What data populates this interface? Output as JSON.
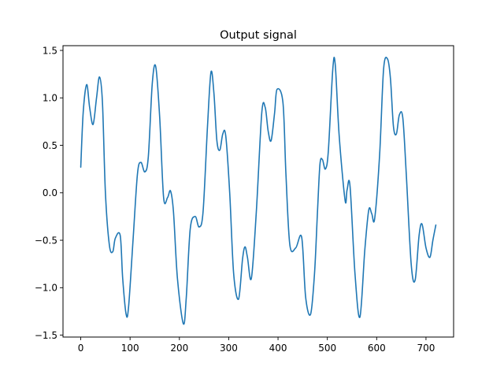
{
  "chart_data": {
    "type": "line",
    "title": "Output signal",
    "xlabel": "",
    "ylabel": "",
    "xlim": [
      -36,
      756
    ],
    "ylim": [
      -1.52,
      1.55
    ],
    "xticks": [
      0,
      100,
      200,
      300,
      400,
      500,
      600,
      700
    ],
    "xtick_labels": [
      "0",
      "100",
      "200",
      "300",
      "400",
      "500",
      "600",
      "700"
    ],
    "yticks": [
      -1.5,
      -1.0,
      -0.5,
      0.0,
      0.5,
      1.0,
      1.5
    ],
    "ytick_labels": [
      "−1.5",
      "−1.0",
      "−0.5",
      "0.0",
      "0.5",
      "1.0",
      "1.5"
    ],
    "grid": false,
    "series": [
      {
        "color": "#1f77b4",
        "x": [
          0,
          5,
          12,
          18,
          25,
          32,
          38,
          44,
          50,
          58,
          65,
          70,
          80,
          85,
          92,
          97,
          106,
          115,
          122,
          130,
          137,
          145,
          152,
          160,
          168,
          176,
          182,
          188,
          196,
          208,
          214,
          222,
          232,
          240,
          248,
          257,
          264,
          270,
          276,
          282,
          288,
          294,
          302,
          310,
          320,
          328,
          333,
          338,
          346,
          356,
          367,
          374,
          380,
          386,
          393,
          398,
          410,
          416,
          424,
          436,
          448,
          456,
          466,
          474,
          480,
          485,
          490,
          496,
          502,
          511,
          516,
          524,
          536,
          540,
          546,
          556,
          566,
          576,
          584,
          590,
          596,
          606,
          614,
          622,
          628,
          634,
          640,
          646,
          653,
          660,
          670,
          678,
          686,
          692,
          700,
          708,
          714,
          720
        ],
        "y": [
          0.27,
          0.85,
          1.14,
          0.9,
          0.72,
          1.0,
          1.22,
          0.95,
          0.0,
          -0.55,
          -0.62,
          -0.48,
          -0.45,
          -0.9,
          -1.28,
          -1.2,
          -0.5,
          0.2,
          0.32,
          0.22,
          0.38,
          1.15,
          1.33,
          0.8,
          -0.05,
          -0.05,
          0.02,
          -0.2,
          -0.9,
          -1.38,
          -1.1,
          -0.38,
          -0.25,
          -0.36,
          -0.2,
          0.7,
          1.27,
          1.05,
          0.55,
          0.45,
          0.62,
          0.6,
          0.0,
          -0.85,
          -1.12,
          -0.7,
          -0.57,
          -0.68,
          -0.9,
          -0.2,
          0.84,
          0.9,
          0.65,
          0.55,
          0.84,
          1.09,
          0.95,
          0.2,
          -0.55,
          -0.58,
          -0.47,
          -1.1,
          -1.28,
          -0.85,
          -0.2,
          0.3,
          0.35,
          0.25,
          0.44,
          1.3,
          1.35,
          0.6,
          -0.08,
          0.03,
          0.07,
          -0.85,
          -1.31,
          -0.6,
          -0.18,
          -0.22,
          -0.27,
          0.4,
          1.3,
          1.41,
          1.2,
          0.7,
          0.62,
          0.82,
          0.79,
          0.2,
          -0.75,
          -0.92,
          -0.45,
          -0.33,
          -0.58,
          -0.68,
          -0.5,
          -0.34
        ]
      }
    ]
  }
}
